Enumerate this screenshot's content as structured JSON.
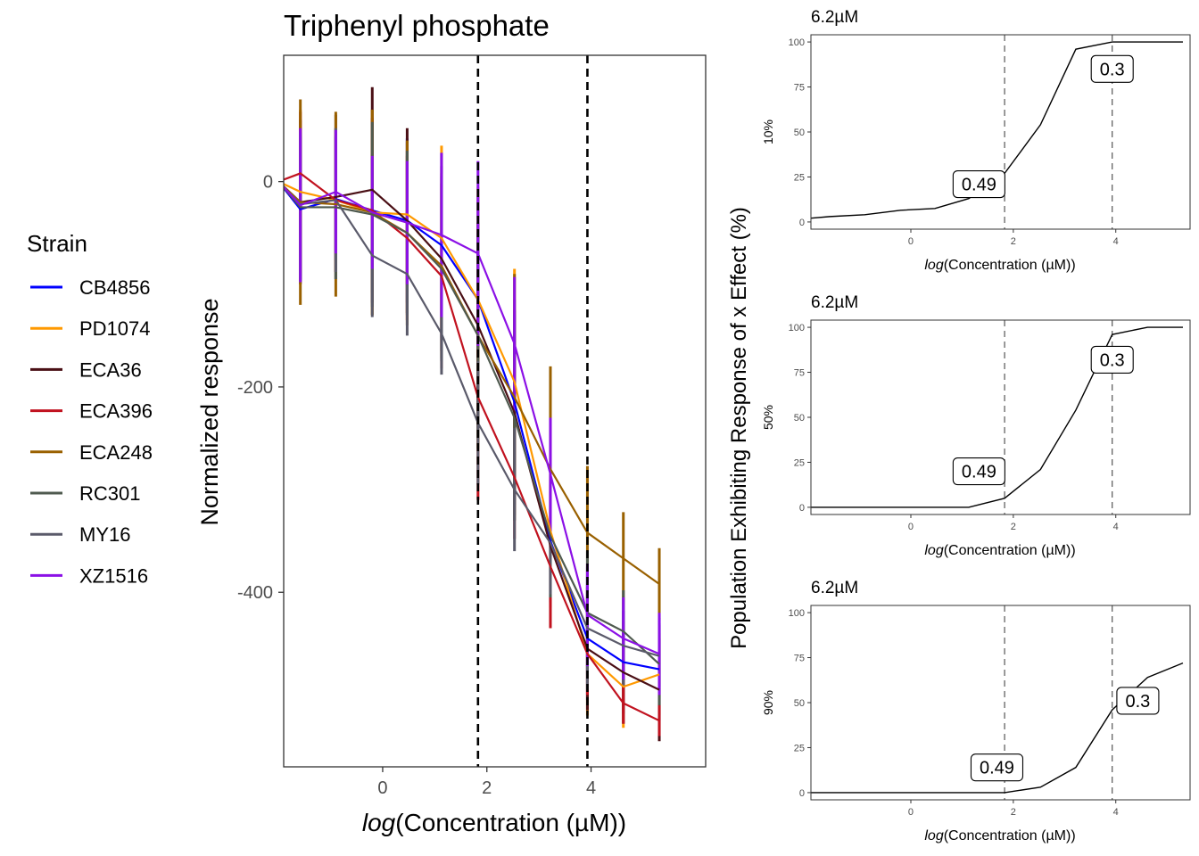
{
  "legend": {
    "title": "Strain",
    "items": [
      {
        "label": "CB4856",
        "color": "#0000FF"
      },
      {
        "label": "PD1074",
        "color": "#FF9900"
      },
      {
        "label": "ECA36",
        "color": "#4A0F15"
      },
      {
        "label": "ECA396",
        "color": "#C1121F"
      },
      {
        "label": "ECA248",
        "color": "#996000"
      },
      {
        "label": "RC301",
        "color": "#4F5A4F"
      },
      {
        "label": "MY16",
        "color": "#5A5A6A"
      },
      {
        "label": "XZ1516",
        "color": "#8B10E6"
      }
    ]
  },
  "side_ylabel": "Population Exhibiting Response of x Effect (%)",
  "chart_data": [
    {
      "type": "line",
      "title": "Triphenyl phosphate",
      "xlabel_italic": "log",
      "xlabel": "(Concentration (µM))",
      "ylabel": "Normalized response",
      "xlim": [
        -1.9,
        6.2
      ],
      "ylim": [
        -570,
        123
      ],
      "xticks": [
        0,
        2,
        4
      ],
      "yticks": [
        0,
        -200,
        -400
      ],
      "grid": false,
      "vlines": [
        1.83,
        3.93
      ],
      "x": [
        -2.0,
        -1.58,
        -0.9,
        -0.2,
        0.47,
        1.13,
        1.83,
        2.53,
        3.22,
        3.93,
        4.62,
        5.31
      ],
      "series": [
        {
          "name": "CB4856",
          "values": [
            0,
            -27,
            -17,
            -28,
            -38,
            -62,
            -115,
            -215,
            -350,
            -445,
            -468,
            -475
          ],
          "err": [
            60,
            70,
            60,
            90,
            80,
            90,
            100,
            100,
            60,
            60,
            50,
            50
          ]
        },
        {
          "name": "PD1074",
          "values": [
            0,
            -10,
            -18,
            -30,
            -32,
            -55,
            -115,
            -195,
            -340,
            -460,
            -492,
            -480
          ],
          "err": [
            80,
            80,
            70,
            100,
            70,
            90,
            110,
            110,
            60,
            60,
            40,
            40
          ]
        },
        {
          "name": "ECA36",
          "values": [
            0,
            -20,
            -15,
            -8,
            -38,
            -75,
            -140,
            -225,
            -355,
            -455,
            -478,
            -495
          ],
          "err": [
            70,
            80,
            80,
            100,
            90,
            90,
            100,
            100,
            60,
            60,
            50,
            50
          ]
        },
        {
          "name": "ECA396",
          "values": [
            0,
            8,
            -18,
            -28,
            -55,
            -92,
            -210,
            -288,
            -375,
            -460,
            -508,
            -525
          ],
          "err": [
            50,
            60,
            70,
            90,
            80,
            90,
            100,
            60,
            60,
            40,
            20,
            15
          ]
        },
        {
          "name": "ECA248",
          "values": [
            0,
            -20,
            -22,
            -30,
            -50,
            -82,
            -150,
            -210,
            -280,
            -342,
            -367,
            -392
          ],
          "err": [
            80,
            100,
            90,
            100,
            90,
            90,
            110,
            120,
            100,
            65,
            45,
            35
          ]
        },
        {
          "name": "RC301",
          "values": [
            0,
            -25,
            -25,
            -32,
            -50,
            -85,
            -150,
            -230,
            -345,
            -420,
            -438,
            -470
          ],
          "err": [
            70,
            70,
            70,
            90,
            80,
            90,
            100,
            100,
            60,
            60,
            40,
            40
          ]
        },
        {
          "name": "MY16",
          "values": [
            0,
            -22,
            -18,
            -72,
            -90,
            -148,
            -235,
            -300,
            -352,
            -435,
            -452,
            -462
          ],
          "err": [
            60,
            70,
            70,
            60,
            60,
            40,
            60,
            60,
            50,
            60,
            40,
            30
          ]
        },
        {
          "name": "XZ1516",
          "values": [
            0,
            -23,
            -10,
            -30,
            -40,
            -52,
            -70,
            -158,
            -285,
            -422,
            -445,
            -460
          ],
          "err": [
            60,
            75,
            60,
            55,
            60,
            80,
            90,
            65,
            55,
            50,
            40,
            40
          ]
        }
      ]
    },
    {
      "type": "line",
      "title": "6.2µM",
      "ylabel": "10%",
      "xlabel_italic": "log",
      "xlabel": "(Concentration (µM))",
      "xlim": [
        -1.95,
        5.45
      ],
      "ylim": [
        -4,
        104
      ],
      "xticks": [
        0,
        2,
        4
      ],
      "yticks": [
        0,
        25,
        50,
        75,
        100
      ],
      "vlines": [
        1.83,
        3.93
      ],
      "x": [
        -2.0,
        -1.58,
        -0.9,
        -0.2,
        0.47,
        1.13,
        1.83,
        2.53,
        3.22,
        3.93,
        4.62,
        5.31
      ],
      "y": [
        2,
        3,
        4,
        6.5,
        7.5,
        13,
        27,
        54,
        96,
        100,
        100,
        100
      ],
      "annotations": [
        {
          "text": "0.49",
          "x": 1.33,
          "y": 21
        },
        {
          "text": "0.3",
          "x": 3.93,
          "y": 85
        }
      ]
    },
    {
      "type": "line",
      "title": "6.2µM",
      "ylabel": "50%",
      "xlabel_italic": "log",
      "xlabel": "(Concentration (µM))",
      "xlim": [
        -1.95,
        5.45
      ],
      "ylim": [
        -4,
        104
      ],
      "xticks": [
        0,
        2,
        4
      ],
      "yticks": [
        0,
        25,
        50,
        75,
        100
      ],
      "vlines": [
        1.83,
        3.93
      ],
      "x": [
        -2.0,
        -1.58,
        -0.9,
        -0.2,
        0.47,
        1.13,
        1.83,
        2.53,
        3.22,
        3.93,
        4.62,
        5.31
      ],
      "y": [
        0,
        0,
        0,
        0,
        0,
        0,
        5,
        21,
        54,
        96,
        100,
        100
      ],
      "annotations": [
        {
          "text": "0.49",
          "x": 1.33,
          "y": 20
        },
        {
          "text": "0.3",
          "x": 3.93,
          "y": 82
        }
      ]
    },
    {
      "type": "line",
      "title": "6.2µM",
      "ylabel": "90%",
      "xlabel_italic": "log",
      "xlabel": "(Concentration (µM))",
      "xlim": [
        -1.95,
        5.45
      ],
      "ylim": [
        -4,
        104
      ],
      "xticks": [
        0,
        2,
        4
      ],
      "yticks": [
        0,
        25,
        50,
        75,
        100
      ],
      "vlines": [
        1.83,
        3.93
      ],
      "x": [
        -2.0,
        -1.58,
        -0.9,
        -0.2,
        0.47,
        1.13,
        1.83,
        2.53,
        3.22,
        3.93,
        4.62,
        5.31
      ],
      "y": [
        0,
        0,
        0,
        0,
        0,
        0,
        0,
        3,
        14,
        46,
        64,
        72
      ],
      "annotations": [
        {
          "text": "0.49",
          "x": 1.68,
          "y": 14
        },
        {
          "text": "0.3",
          "x": 4.43,
          "y": 51
        }
      ]
    }
  ]
}
